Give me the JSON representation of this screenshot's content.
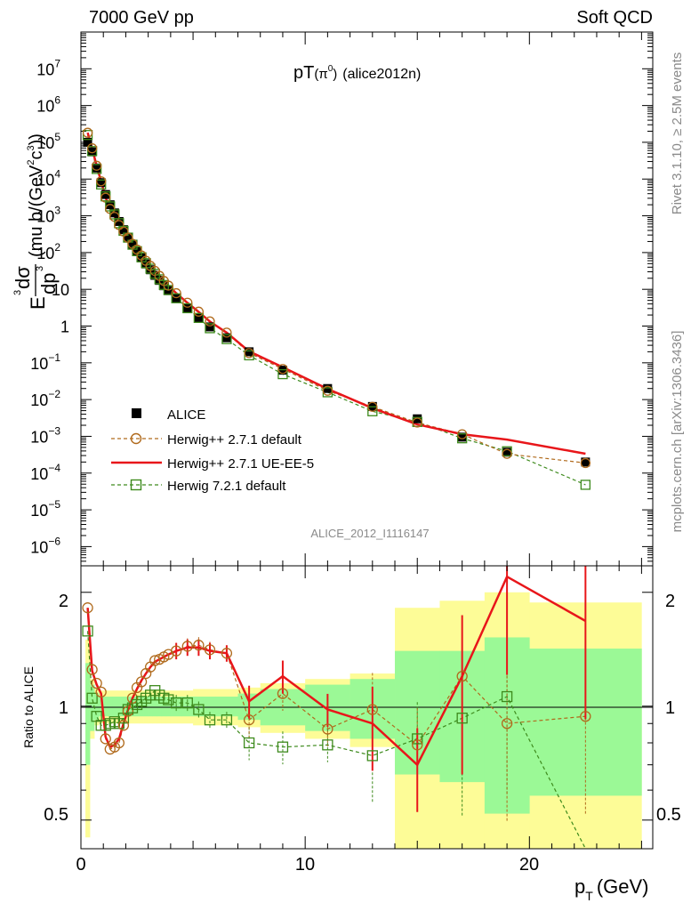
{
  "header": {
    "left": "7000 GeV pp",
    "right": "Soft QCD"
  },
  "side": {
    "rivet": "Rivet 3.1.10, ≥ 2.5M events",
    "mcplots": "mcplots.cern.ch [arXiv:1306.3436]"
  },
  "chart_data": [
    {
      "type": "line",
      "panel": "main",
      "title_main": "pT",
      "title_paren": "(π",
      "title_sup": "0",
      "title_paren_close": ")",
      "title_analysis": "(alice2012n)",
      "ylabel_E": "E",
      "ylabel_d3": "3",
      "ylabel_sigma": "dσ",
      "ylabel_dp": "dp",
      "ylabel_dp3": "3",
      "ylabel_units": "(mu b/(GeV",
      "ylabel_units_sup": "2",
      "ylabel_units_end": "c",
      "ylabel_units_sup2": "3",
      "ylabel_units_close": "))",
      "yscale": "log",
      "ylim": [
        3e-07,
        100000000.0
      ],
      "xlim": [
        0,
        25.5
      ],
      "y_ticks": [
        {
          "v": 10000000.0,
          "base": "10",
          "exp": "7"
        },
        {
          "v": 1000000.0,
          "base": "10",
          "exp": "6"
        },
        {
          "v": 100000.0,
          "base": "10",
          "exp": "5"
        },
        {
          "v": 10000.0,
          "base": "10",
          "exp": "4"
        },
        {
          "v": 1000.0,
          "base": "10",
          "exp": "3"
        },
        {
          "v": 100.0,
          "base": "10",
          "exp": "2"
        },
        {
          "v": 10,
          "base": "10",
          "exp": ""
        },
        {
          "v": 1,
          "base": "1",
          "exp": ""
        },
        {
          "v": 0.1,
          "base": "10",
          "exp": "−1"
        },
        {
          "v": 0.01,
          "base": "10",
          "exp": "−2"
        },
        {
          "v": 0.001,
          "base": "10",
          "exp": "−3"
        },
        {
          "v": 0.0001,
          "base": "10",
          "exp": "−4"
        },
        {
          "v": 1e-05,
          "base": "10",
          "exp": "−5"
        },
        {
          "v": 1e-06,
          "base": "10",
          "exp": "−6"
        }
      ],
      "watermark": "ALICE_2012_I1116147",
      "legend_position": "lower-left",
      "x": [
        0.3,
        0.5,
        0.7,
        0.9,
        1.1,
        1.3,
        1.5,
        1.7,
        1.9,
        2.1,
        2.3,
        2.5,
        2.7,
        2.9,
        3.1,
        3.3,
        3.5,
        3.7,
        3.9,
        4.25,
        4.75,
        5.25,
        5.75,
        6.5,
        7.5,
        9.0,
        11.0,
        13.0,
        15.0,
        17.0,
        19.0,
        22.5
      ],
      "alice": [
        100000,
        55000,
        20000,
        8000,
        3800,
        2000,
        1200,
        700,
        420,
        260,
        165,
        108,
        72,
        49,
        34,
        24,
        17.5,
        12.5,
        9.2,
        5.6,
        3.0,
        1.7,
        0.95,
        0.48,
        0.2,
        0.063,
        0.02,
        0.0065,
        0.003,
        0.00095,
        0.00037,
        0.0002
      ],
      "series": [
        {
          "name": "ALICE",
          "color": "#000000",
          "marker": "filled-square"
        },
        {
          "name": "Herwig++ 2.7.1 default",
          "color": "#b06a1c",
          "marker": "open-circle",
          "ratio": [
            1.82,
            1.25,
            1.15,
            1.09,
            0.82,
            0.77,
            0.78,
            0.8,
            0.89,
            0.97,
            1.05,
            1.12,
            1.16,
            1.22,
            1.27,
            1.32,
            1.33,
            1.35,
            1.37,
            1.4,
            1.44,
            1.45,
            1.41,
            1.38,
            0.92,
            1.08,
            0.87,
            0.98,
            0.79,
            1.2,
            0.9,
            0.94
          ]
        },
        {
          "name": "Herwig++ 2.7.1 UE-EE-5",
          "color": "#e8161a",
          "marker": "line",
          "ratio": [
            1.82,
            1.24,
            1.14,
            1.08,
            0.83,
            0.78,
            0.79,
            0.82,
            0.9,
            0.98,
            1.05,
            1.11,
            1.17,
            1.22,
            1.27,
            1.31,
            1.33,
            1.35,
            1.37,
            1.4,
            1.43,
            1.43,
            1.4,
            1.38,
            1.03,
            1.2,
            0.98,
            0.9,
            0.7,
            1.2,
            2.2,
            1.68
          ]
        },
        {
          "name": "Herwig 7.2.1 default",
          "color": "#3d8a1c",
          "marker": "open-square",
          "ratio": [
            1.58,
            1.05,
            0.94,
            0.89,
            0.89,
            0.9,
            0.91,
            0.9,
            0.93,
            0.98,
            0.99,
            1.01,
            1.03,
            1.05,
            1.07,
            1.1,
            1.07,
            1.05,
            1.04,
            1.02,
            1.02,
            0.98,
            0.92,
            0.92,
            0.8,
            0.78,
            0.79,
            0.74,
            0.82,
            0.93,
            1.06,
            0.24
          ]
        }
      ]
    },
    {
      "type": "line",
      "panel": "ratio",
      "ylabel": "Ratio to ALICE",
      "xlabel_p": "p",
      "xlabel_T": "T",
      "xlabel_unit": "(GeV)",
      "xlim": [
        0,
        25.5
      ],
      "ylim": [
        0.42,
        2.35
      ],
      "x_ticks": [
        "0",
        "10",
        "20"
      ],
      "y_ticks": [
        "2",
        "1",
        "0.5"
      ],
      "band_edges": [
        0.2,
        0.4,
        0.6,
        0.8,
        1.0,
        1.2,
        1.4,
        1.6,
        1.8,
        2.0,
        2.2,
        2.4,
        2.6,
        2.8,
        3.0,
        3.2,
        3.4,
        3.6,
        3.8,
        4.0,
        4.5,
        5.0,
        5.5,
        6.0,
        7.0,
        8.0,
        10.0,
        12.0,
        14.0,
        16.0,
        18.0,
        20.0,
        25.0
      ],
      "band_stat_lo": [
        0.7,
        0.86,
        0.92,
        0.94,
        0.94,
        0.94,
        0.94,
        0.94,
        0.94,
        0.94,
        0.94,
        0.94,
        0.94,
        0.94,
        0.94,
        0.94,
        0.94,
        0.94,
        0.94,
        0.94,
        0.94,
        0.94,
        0.94,
        0.94,
        0.92,
        0.89,
        0.86,
        0.82,
        0.66,
        0.63,
        0.52,
        0.58
      ],
      "band_stat_hi": [
        1.3,
        1.14,
        1.08,
        1.06,
        1.06,
        1.06,
        1.06,
        1.06,
        1.06,
        1.06,
        1.06,
        1.06,
        1.06,
        1.06,
        1.06,
        1.06,
        1.06,
        1.06,
        1.06,
        1.06,
        1.06,
        1.06,
        1.06,
        1.06,
        1.08,
        1.11,
        1.14,
        1.18,
        1.4,
        1.4,
        1.52,
        1.42
      ],
      "band_syst_lo": [
        0.45,
        0.82,
        0.89,
        0.9,
        0.9,
        0.9,
        0.9,
        0.9,
        0.9,
        0.9,
        0.9,
        0.9,
        0.9,
        0.9,
        0.9,
        0.9,
        0.9,
        0.9,
        0.9,
        0.9,
        0.9,
        0.89,
        0.89,
        0.89,
        0.88,
        0.85,
        0.82,
        0.78,
        0.42,
        0.42,
        0.42,
        0.42
      ],
      "band_syst_hi": [
        1.5,
        1.18,
        1.12,
        1.1,
        1.1,
        1.1,
        1.1,
        1.1,
        1.1,
        1.1,
        1.1,
        1.1,
        1.1,
        1.1,
        1.1,
        1.1,
        1.1,
        1.1,
        1.1,
        1.1,
        1.1,
        1.11,
        1.11,
        1.11,
        1.12,
        1.15,
        1.18,
        1.22,
        1.82,
        1.9,
        2.0,
        1.88
      ]
    }
  ]
}
